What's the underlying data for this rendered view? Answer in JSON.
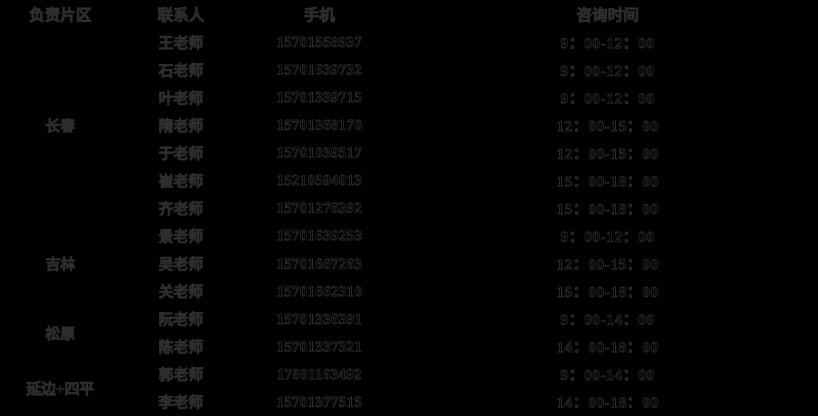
{
  "colors": {
    "background": "#000000",
    "text_fill": "#000000",
    "text_outline": "#2e2e2e"
  },
  "table": {
    "headers": [
      "负责片区",
      "联系人",
      "手机",
      "咨询时间"
    ],
    "regions": [
      {
        "name": "长春",
        "contacts": [
          {
            "name": "王老师",
            "phone": "15701558937",
            "time": "9：00-12：00"
          },
          {
            "name": "石老师",
            "phone": "15701639732",
            "time": "9：00-12：00"
          },
          {
            "name": "叶老师",
            "phone": "15701339715",
            "time": "9：00-12：00"
          },
          {
            "name": "隋老师",
            "phone": "15701368170",
            "time": "12：00-15：00"
          },
          {
            "name": "于老师",
            "phone": "15701039517",
            "time": "12：00-15：00"
          },
          {
            "name": "崔老师",
            "phone": "15210594013",
            "time": "15：00-18：00"
          },
          {
            "name": "齐老师",
            "phone": "15701276392",
            "time": "15：00-18：00"
          }
        ]
      },
      {
        "name": "吉林",
        "contacts": [
          {
            "name": "景老师",
            "phone": "15701639253",
            "time": "9：00-12：00"
          },
          {
            "name": "吴老师",
            "phone": "15701667263",
            "time": "12：00-15：00"
          },
          {
            "name": "关老师",
            "phone": "15701662310",
            "time": "15：00-18：00"
          }
        ]
      },
      {
        "name": "松原",
        "contacts": [
          {
            "name": "阮老师",
            "phone": "15701336391",
            "time": "9：00-14：00"
          },
          {
            "name": "陈老师",
            "phone": "15701337321",
            "time": "14：00-18：00"
          }
        ]
      },
      {
        "name": "延边+四平",
        "contacts": [
          {
            "name": "郭老师",
            "phone": "17801163492",
            "time": "9：00-14：00"
          },
          {
            "name": "李老师",
            "phone": "15701377515",
            "time": "14：00-18：00"
          }
        ]
      }
    ]
  }
}
